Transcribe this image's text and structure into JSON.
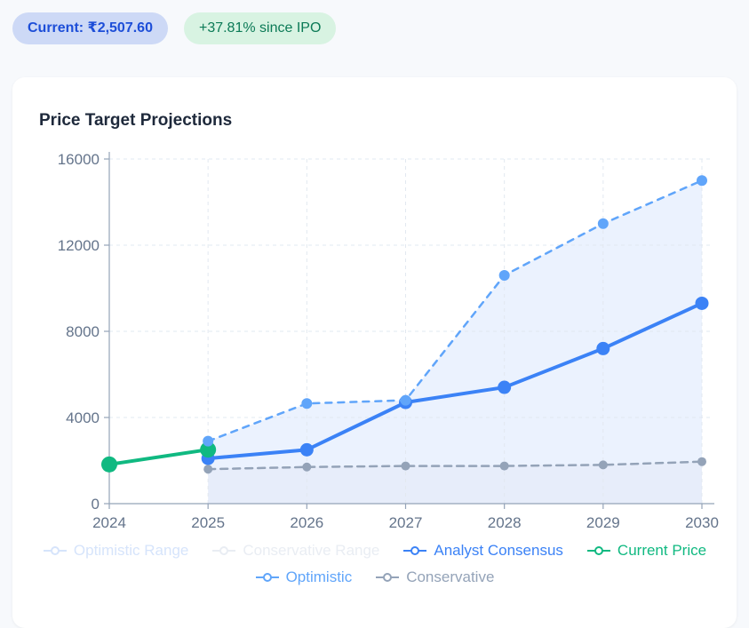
{
  "badges": {
    "current": "Current: ₹2,507.60",
    "since_ipo": "+37.81% since IPO"
  },
  "chart": {
    "title": "Price Target Projections"
  },
  "colors": {
    "page_background": "#f7f9fc",
    "card_background": "#ffffff",
    "title_text": "#1e293b",
    "axis_line": "#94a3b8",
    "grid_line": "#e2e8f0",
    "tick_text": "#64748b",
    "current_badge_bg": "#cdd9f6",
    "current_badge_text": "#1d4ed8",
    "ipo_badge_bg": "#d8f3e2",
    "ipo_badge_text": "#0b7a56"
  },
  "chart_data": {
    "type": "line",
    "title": "Price Target Projections",
    "x": [
      2024,
      2025,
      2026,
      2027,
      2028,
      2029,
      2030
    ],
    "xlabel": "",
    "ylabel": "",
    "ylim": [
      0,
      16000
    ],
    "yticks": [
      0,
      4000,
      8000,
      12000,
      16000
    ],
    "grid": true,
    "legend_position": "bottom",
    "currency": "₹",
    "series": [
      {
        "name": "Optimistic Range",
        "type": "area",
        "color": "#d6e4fb",
        "fill": "#3b82f6",
        "fill_opacity": 0.1,
        "values": [
          null,
          2900,
          4650,
          4800,
          10600,
          13000,
          15000
        ]
      },
      {
        "name": "Conservative Range",
        "type": "area",
        "color": "#e9edf3",
        "fill": "#94a3b8",
        "fill_opacity": 0.05,
        "values": [
          null,
          1600,
          1700,
          1750,
          1750,
          1800,
          1950
        ]
      },
      {
        "name": "Analyst Consensus",
        "type": "line",
        "color": "#3b82f6",
        "dash": "",
        "line_width": 4,
        "dot_radius": 7.5,
        "values": [
          null,
          2100,
          2500,
          4700,
          5400,
          7200,
          9300
        ]
      },
      {
        "name": "Current Price",
        "type": "line",
        "color": "#10b981",
        "dash": "",
        "line_width": 4,
        "dot_radius": 9,
        "values": [
          1820,
          2507.6,
          null,
          null,
          null,
          null,
          null
        ]
      },
      {
        "name": "Optimistic",
        "type": "line",
        "color": "#60a5fa",
        "dash": "7 7",
        "line_width": 2.5,
        "dot_radius": 6,
        "values": [
          null,
          2900,
          4650,
          4800,
          10600,
          13000,
          15000
        ]
      },
      {
        "name": "Conservative",
        "type": "line",
        "color": "#94a3b8",
        "dash": "8 6",
        "line_width": 2.5,
        "dot_radius": 5,
        "values": [
          null,
          1600,
          1700,
          1750,
          1750,
          1800,
          1950
        ]
      }
    ],
    "legend_rows": [
      [
        0,
        1,
        2,
        3
      ],
      [
        4,
        5
      ]
    ]
  }
}
